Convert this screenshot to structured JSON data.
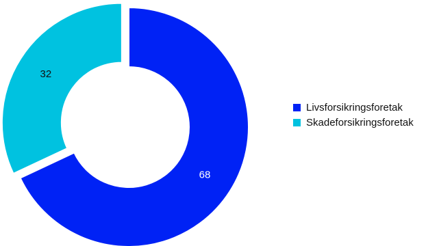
{
  "chart_data": {
    "type": "pie",
    "variant": "donut",
    "title": "",
    "categories": [
      "Livsforsikringsforetak",
      "Skadeforsikringsforetak"
    ],
    "values": [
      68,
      32
    ],
    "data_labels": [
      "68",
      "32"
    ],
    "colors": [
      "#0022F5",
      "#00C2E0"
    ],
    "label_colors": [
      "#ffffff",
      "#111111"
    ],
    "exploded": [
      false,
      true
    ],
    "legend_position": "right"
  }
}
